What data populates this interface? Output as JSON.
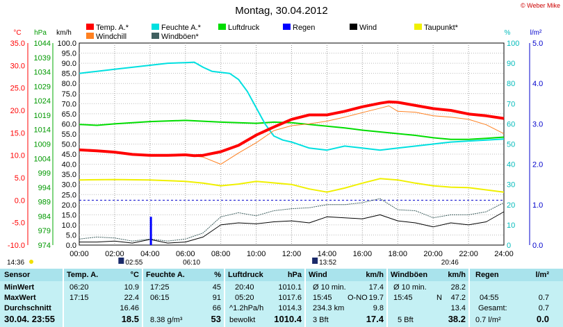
{
  "header": {
    "title": "Montag, 30.04.2012",
    "copyright": "© Weber Mike"
  },
  "colors": {
    "temp": "#ff0000",
    "windchill": "#ff8020",
    "feuchte": "#00e0e0",
    "windboeen": "#406060",
    "luftdruck": "#00dd00",
    "regen": "#0000ff",
    "wind": "#000000",
    "taupunkt": "#f0f000",
    "panel": "#c4f0f4"
  },
  "legend": [
    {
      "key": "temp",
      "label": "Temp. A.*"
    },
    {
      "key": "windchill",
      "label": "Windchill"
    },
    {
      "key": "feuchte",
      "label": "Feuchte A.*"
    },
    {
      "key": "windboeen",
      "label": "Windböen*"
    },
    {
      "key": "luftdruck",
      "label": "Luftdruck"
    },
    {
      "key": "regen",
      "label": "Regen"
    },
    {
      "key": "wind",
      "label": "Wind"
    },
    {
      "key": "taupunkt",
      "label": "Taupunkt*"
    }
  ],
  "chart_data": {
    "type": "line",
    "title": "Montag, 30.04.2012",
    "x_ticks": [
      "00:00",
      "02:00",
      "04:00",
      "06:00",
      "08:00",
      "10:00",
      "12:00",
      "14:00",
      "16:00",
      "18:00",
      "20:00",
      "22:00",
      "24:00"
    ],
    "axes": {
      "temp": {
        "unit": "°C",
        "range": [
          -10,
          35
        ],
        "ticks": [
          "35.0",
          "30.0",
          "25.0",
          "20.0",
          "15.0",
          "10.0",
          "5.0",
          "0.0",
          "-5.0",
          "-10.0"
        ]
      },
      "pressure": {
        "unit": "hPa",
        "range": [
          974,
          1044
        ],
        "ticks": [
          "1044",
          "1039",
          "1034",
          "1029",
          "1024",
          "1019",
          "1014",
          "1009",
          "1004",
          "999",
          "994",
          "989",
          "984",
          "979",
          "974"
        ]
      },
      "wind": {
        "unit": "km/h",
        "range": [
          0,
          100
        ],
        "ticks": [
          "100.0",
          "95.0",
          "90.0",
          "85.0",
          "80.0",
          "75.0",
          "70.0",
          "65.0",
          "60.0",
          "55.0",
          "50.0",
          "45.0",
          "40.0",
          "35.0",
          "30.0",
          "25.0",
          "20.0",
          "15.0",
          "10.0",
          "5.0",
          "0.0"
        ]
      },
      "humidity": {
        "unit": "%",
        "range": [
          0,
          100
        ],
        "ticks": [
          "100",
          "90",
          "80",
          "70",
          "60",
          "50",
          "40",
          "30",
          "20",
          "10",
          "0"
        ]
      },
      "rain": {
        "unit": "l/m²",
        "range": [
          0,
          5
        ],
        "ticks": [
          "5.0",
          "4.0",
          "3.0",
          "2.0",
          "1.0",
          "0.0"
        ]
      }
    },
    "series": [
      {
        "name": "Temp. A.*",
        "axis": "temp",
        "hours": [
          0,
          1,
          2,
          3,
          4,
          5,
          6,
          6.5,
          7,
          8,
          9,
          10,
          11,
          12,
          13,
          14,
          15,
          16,
          17,
          17.5,
          18,
          19,
          20,
          21,
          22,
          23,
          24
        ],
        "values": [
          11.2,
          11,
          10.7,
          10.2,
          10,
          10,
          10.1,
          9.9,
          10,
          10.8,
          12.2,
          14.5,
          16.3,
          18,
          19,
          19,
          19.8,
          20.8,
          21.6,
          21.9,
          21.8,
          21.1,
          20.4,
          20,
          19.2,
          18.8,
          18.2
        ]
      },
      {
        "name": "Windchill",
        "axis": "temp",
        "hours": [
          0,
          1,
          2,
          3,
          4,
          5,
          6,
          7,
          8,
          9,
          10,
          11,
          12,
          13,
          14,
          15,
          16,
          17,
          17.5,
          18,
          19,
          20,
          21,
          22,
          23,
          24
        ],
        "values": [
          11.1,
          11,
          10.6,
          10.1,
          9.9,
          9.9,
          10,
          9.6,
          8,
          10.5,
          12.8,
          15.5,
          16.6,
          17,
          17.6,
          18.5,
          19.5,
          20.5,
          21,
          19.8,
          19.6,
          18.8,
          18.5,
          18,
          16.8,
          14.8
        ]
      },
      {
        "name": "Feuchte A.*",
        "axis": "humidity",
        "hours": [
          0,
          1,
          2,
          3,
          4,
          5,
          6,
          6.5,
          7,
          7.5,
          8,
          8.5,
          9,
          9.5,
          10,
          10.5,
          11,
          11.5,
          12,
          13,
          14,
          14.5,
          15,
          16,
          17,
          18,
          19,
          20,
          21,
          22,
          23,
          24
        ],
        "values": [
          85,
          86,
          87,
          88,
          89,
          90,
          90.3,
          90.5,
          88,
          86,
          85.5,
          85,
          82,
          76,
          68,
          60,
          54,
          52,
          51,
          48,
          47,
          48,
          49,
          48,
          47,
          48,
          49,
          50,
          51,
          51.5,
          52,
          52.5
        ]
      },
      {
        "name": "Luftdruck",
        "axis": "pressure",
        "hours": [
          0,
          1,
          2,
          4,
          6,
          8,
          10,
          11,
          12,
          13,
          14,
          15,
          16,
          17,
          18,
          19,
          20,
          21,
          22,
          23,
          24
        ],
        "values": [
          1015.8,
          1015.5,
          1016,
          1016.8,
          1017.2,
          1016.6,
          1016.2,
          1016.6,
          1016.4,
          1015.8,
          1015.2,
          1014.6,
          1013.8,
          1013.2,
          1012.6,
          1012,
          1011.2,
          1010.6,
          1010.6,
          1011,
          1011.4
        ]
      },
      {
        "name": "Taupunkt*",
        "axis": "temp",
        "hours": [
          0,
          2,
          4,
          6,
          7,
          8,
          9,
          10,
          12,
          13,
          14,
          15,
          16,
          17,
          18,
          19,
          20,
          21,
          22,
          23,
          24
        ],
        "values": [
          4.5,
          4.6,
          4.5,
          4.2,
          3.8,
          3.2,
          3.6,
          4.2,
          3.5,
          2.5,
          1.8,
          2.7,
          3.8,
          4.8,
          4.5,
          3.8,
          3.2,
          2.9,
          2.8,
          2.3,
          1.8
        ]
      },
      {
        "name": "Wind",
        "axis": "wind",
        "hours": [
          0,
          1,
          2,
          3,
          4,
          5,
          6,
          7,
          8,
          9,
          10,
          11,
          12,
          13,
          14,
          15,
          16,
          17,
          18,
          19,
          20,
          21,
          22,
          23,
          24
        ],
        "values": [
          1.5,
          1.5,
          2,
          1,
          2.8,
          1,
          1.5,
          4,
          10,
          11,
          10.5,
          11.5,
          12,
          11,
          14,
          13.5,
          13,
          15,
          12,
          11,
          9,
          11,
          10,
          11.5,
          16.5
        ]
      },
      {
        "name": "Windböen*",
        "axis": "wind",
        "hours": [
          0,
          1,
          2,
          3,
          4,
          5,
          6,
          7,
          8,
          9,
          10,
          11,
          12,
          13,
          14,
          15,
          16,
          17,
          18,
          19,
          20,
          21,
          22,
          23,
          24
        ],
        "values": [
          3,
          4,
          3.5,
          2,
          3,
          2,
          3,
          6,
          14,
          16,
          14.5,
          17,
          18,
          18.5,
          20,
          20,
          21,
          23,
          17.5,
          17,
          13.5,
          15,
          15,
          16.5,
          21
        ]
      },
      {
        "name": "Regen",
        "axis": "rain",
        "events": [
          {
            "hour": 4.05,
            "value": 0.7
          }
        ]
      }
    ],
    "annotations": {
      "bottom_left_time": "14:36",
      "below_axis": [
        "02:55",
        "06:10",
        "13:52",
        "20:46"
      ]
    }
  },
  "stats": {
    "sensor": {
      "header": "Sensor",
      "min": "MinWert",
      "max": "MaxWert",
      "avg": "Durchschnitt",
      "current": "30.04. 23:55"
    },
    "temp": {
      "header": "Temp. A.",
      "unit": "°C",
      "min_time": "06:20",
      "min_val": "10.9",
      "max_time": "17:15",
      "max_val": "22.4",
      "avg": "16.46",
      "current": "18.5"
    },
    "feuchte": {
      "header": "Feuchte A.",
      "unit": "%",
      "min_time": "17:25",
      "min_val": "45",
      "max_time": "06:15",
      "max_val": "91",
      "avg": "66",
      "current_extra": "8.38 g/m³",
      "current": "53"
    },
    "luftdruck": {
      "header": "Luftdruck",
      "unit": "hPa",
      "min_time": "20:40",
      "min_val": "1010.1",
      "max_time": "05:20",
      "max_val": "1017.6",
      "avg_label": "^1.2hPa/h",
      "avg": "1014.3",
      "current_extra": "bewolkt",
      "current": "1010.4"
    },
    "wind": {
      "header": "Wind",
      "unit": "km/h",
      "r1_label": "Ø 10 min.",
      "r1_val": "17.4",
      "r2_time": "15:45",
      "r2_dir": "O-NO",
      "r2_val": "19.7",
      "r3_label": "234.3 km",
      "r3_val": "9.8",
      "r4_label": "3 Bft",
      "r4_val": "17.4"
    },
    "windboeen": {
      "header": "Windböen",
      "unit": "km/h",
      "r1_label": "Ø 10 min.",
      "r1_val": "28.2",
      "r2_time": "15:45",
      "r2_dir": "N",
      "r2_val": "47.2",
      "r3_val": "13.4",
      "r4_label": "5 Bft",
      "r4_val": "38.2"
    },
    "regen": {
      "header": "Regen",
      "unit": "l/m²",
      "r2_time": "04:55",
      "r2_val": "0.7",
      "r3_label": "Gesamt:",
      "r3_val": "0.7",
      "r4_label": "0.7 l/m²",
      "r4_val": "0.0"
    }
  }
}
